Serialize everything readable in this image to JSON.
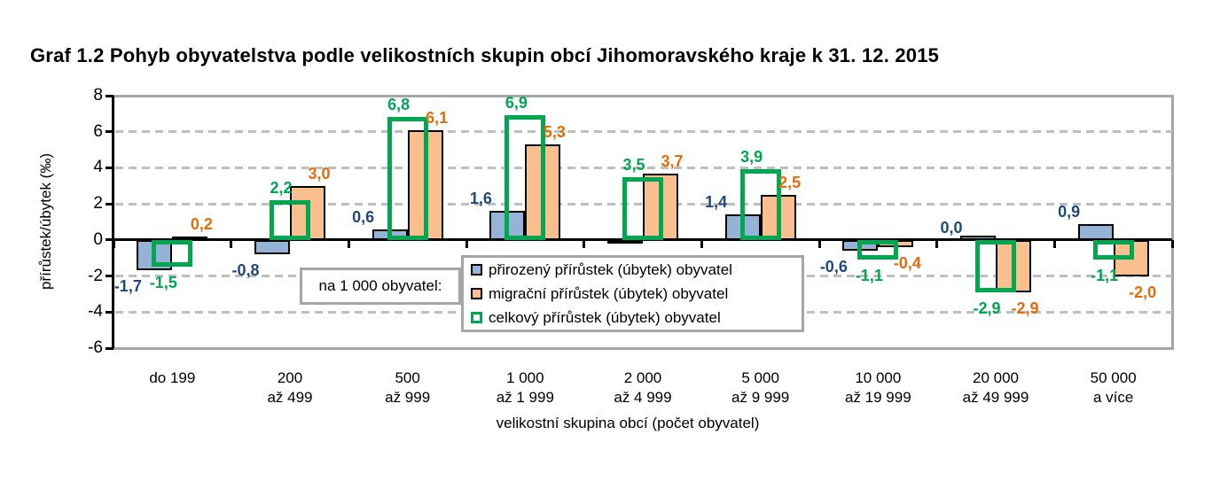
{
  "title": "Graf 1.2 Pohyb obyvatelstva podle velikostních skupin obcí Jihomoravského kraje k 31. 12. 2015",
  "colors": {
    "natural_fill": "#95B3D7",
    "migration_fill": "#FABF8F",
    "total_outline": "#00A650",
    "natural_label": "#1F497D",
    "migration_label": "#E46C0A",
    "total_label": "#00A650",
    "bar_border": "#000000",
    "gridline": "#BFBFBF",
    "frame": "#A6A6A6",
    "axis": "#000000"
  },
  "chart_data": {
    "type": "bar",
    "title": "Graf 1.2 Pohyb obyvatelstva podle velikostních skupin obcí Jihomoravského kraje k 31. 12. 2015",
    "xlabel": "velikostní skupina obcí (počet obyvatel)",
    "ylabel": "přírůstek/úbytek (‰)",
    "unit_note": "na 1 000 obyvatel:",
    "ylim": [
      -6,
      8
    ],
    "yticks": [
      8,
      6,
      4,
      2,
      0,
      -2,
      -4,
      -6
    ],
    "grid": "horizontal-dashed",
    "legend_position": "inside-bottom-center",
    "categories": [
      "do 199",
      "200 až 499",
      "500 až 999",
      "1 000 až 1 999",
      "2 000 až 4 999",
      "5 000 až 9 999",
      "10 000 až 19 999",
      "20 000 až 49 999",
      "50 000 a více"
    ],
    "category_lines": [
      [
        "do 199"
      ],
      [
        "200",
        "až 499"
      ],
      [
        "500",
        "až 999"
      ],
      [
        "1 000",
        "až 1 999"
      ],
      [
        "2 000",
        "až 4 999"
      ],
      [
        "5 000",
        "až 9 999"
      ],
      [
        "10 000",
        "až 19 999"
      ],
      [
        "20 000",
        "až 49 999"
      ],
      [
        "50 000",
        "a více"
      ]
    ],
    "series": [
      {
        "key": "prirozeny",
        "name": "přirozený přírůstek (úbytek) obyvatel",
        "style": "filled",
        "fill": "#95B3D7",
        "border": "#000000",
        "label_color": "#1F497D",
        "values": [
          -1.7,
          -0.8,
          0.6,
          1.6,
          -0.2,
          1.4,
          -0.6,
          0.0,
          0.9
        ],
        "labels": [
          "-1,7",
          "-0,8",
          "0,6",
          "1,6",
          "",
          "1,4",
          "-0,6",
          "0,0",
          "0,9"
        ]
      },
      {
        "key": "migracni",
        "name": "migrační přírůstek (úbytek) obyvatel",
        "style": "filled",
        "fill": "#FABF8F",
        "border": "#000000",
        "label_color": "#E46C0A",
        "values": [
          0.2,
          3.0,
          6.1,
          5.3,
          3.7,
          2.5,
          -0.4,
          -2.9,
          -2.0
        ],
        "labels": [
          "0,2",
          "3,0",
          "6,1",
          "5,3",
          "3,7",
          "2,5",
          "-0,4",
          "-2,9",
          "-2,0"
        ]
      },
      {
        "key": "celkovy",
        "name": "celkový přírůstek (úbytek) obyvatel",
        "style": "outline",
        "fill": "none",
        "border": "#00A650",
        "label_color": "#00A650",
        "values": [
          -1.5,
          2.2,
          6.8,
          6.9,
          3.5,
          3.9,
          -1.1,
          -2.9,
          -1.1
        ],
        "labels": [
          "-1,5",
          "2,2",
          "6,8",
          "6,9",
          "3,5",
          "3,9",
          "-1,1",
          "-2,9",
          "-1,1"
        ]
      }
    ]
  }
}
